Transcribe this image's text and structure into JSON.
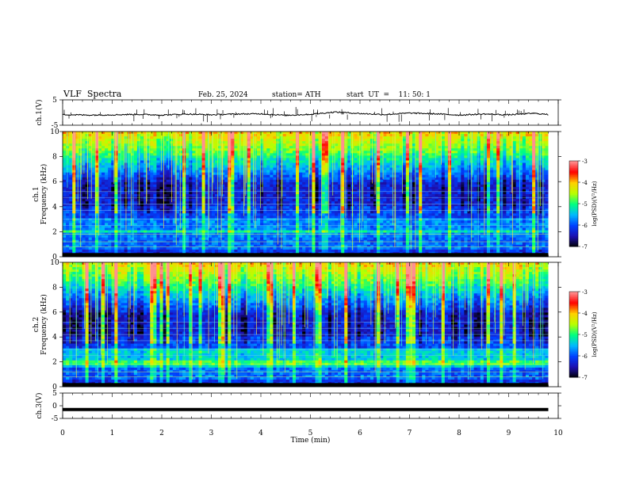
{
  "header": {
    "title": "VLF  Spectra",
    "date": "Feb. 25, 2024",
    "station": "station= ATH",
    "start": "start  UT  =    11: 50: 1"
  },
  "chart_data": [
    {
      "type": "line",
      "name": "ch1-waveform",
      "ylabel": "ch.1(V)",
      "ylim": [
        -5,
        5
      ],
      "yticks": [
        5,
        -5
      ],
      "description_values": {
        "baseline": -0.8,
        "spike_range": [
          -3.5,
          3.5
        ]
      },
      "x": [
        0,
        0.5,
        1,
        1.5,
        2,
        2.5,
        3,
        3.5,
        4,
        4.5,
        5,
        5.5,
        6,
        6.5,
        7,
        7.5,
        8,
        8.5,
        9,
        9.5,
        9.8
      ],
      "values": [
        -0.8,
        -1.0,
        -0.9,
        -0.7,
        -1.0,
        -0.6,
        -0.9,
        -0.6,
        -0.5,
        -1.1,
        -0.7,
        0.2,
        -0.4,
        -0.8,
        -0.2,
        -0.5,
        -1.0,
        -0.6,
        -0.9,
        -0.3,
        -0.8
      ]
    },
    {
      "type": "heatmap",
      "name": "ch1-spectrogram",
      "ylabel": "ch.1\nFrequency  (kHz)",
      "ylim": [
        0,
        10
      ],
      "yticks": [
        0,
        2,
        4,
        6,
        8,
        10
      ],
      "colorbar": {
        "label": "log(PSD)(V²/Hz)",
        "range": [
          -7,
          -3
        ],
        "ticks": [
          -3,
          -4,
          -5,
          -6,
          -7
        ]
      }
    },
    {
      "type": "heatmap",
      "name": "ch2-spectrogram",
      "ylabel": "ch.2\nFrequency  (kHz)",
      "ylim": [
        0,
        10
      ],
      "yticks": [
        0,
        2,
        4,
        6,
        8,
        10
      ],
      "colorbar": {
        "label": "log(PSD)(V²/Hz)",
        "range": [
          -7,
          -3
        ],
        "ticks": [
          -3,
          -4,
          -5,
          -6,
          -7
        ]
      }
    },
    {
      "type": "line",
      "name": "ch3-waveform",
      "ylabel": "ch.3(V)",
      "ylim": [
        -5,
        5
      ],
      "yticks": [
        5,
        0,
        -5
      ],
      "x": [
        0,
        9.8
      ],
      "values": [
        -1.5,
        -1.5
      ]
    }
  ],
  "xaxis": {
    "label": "Time  (min)",
    "ticks": [
      0,
      1,
      2,
      3,
      4,
      5,
      6,
      7,
      8,
      9,
      10
    ],
    "range": [
      0,
      10
    ],
    "data_end": 9.8
  },
  "colors": {
    "colormap": [
      "#000000",
      "#1e10b0",
      "#0040ff",
      "#00b8ff",
      "#00ff80",
      "#b8ff00",
      "#ffd000",
      "#ff0000",
      "#ff9090"
    ],
    "trace": "#000000"
  }
}
